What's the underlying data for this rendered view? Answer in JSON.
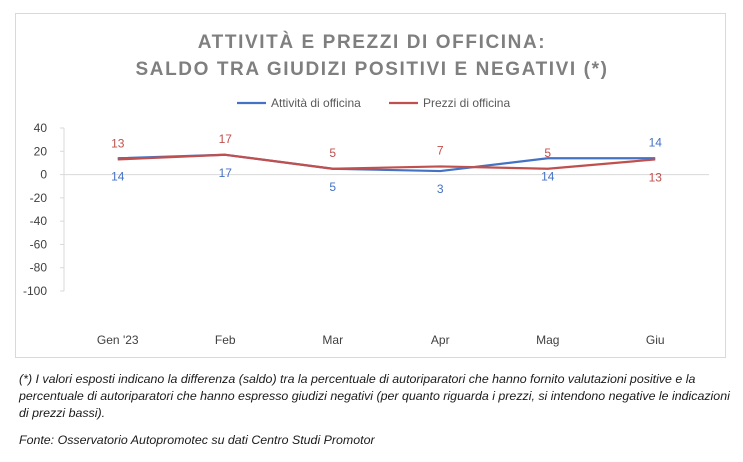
{
  "chart_data": {
    "type": "line",
    "title_lines": [
      "ATTIVITÀ E PREZZI DI OFFICINA:",
      "SALDO TRA GIUDIZI POSITIVI E NEGATIVI (*)"
    ],
    "categories": [
      "Gen '23",
      "Feb",
      "Mar",
      "Apr",
      "Mag",
      "Giu"
    ],
    "series": [
      {
        "name": "Attività di officina",
        "values": [
          14,
          17,
          5,
          3,
          14,
          14
        ],
        "labels": [
          "14",
          "17",
          "5",
          "3",
          "14",
          "14"
        ],
        "color": "#4472c4",
        "label_position": [
          "below",
          "below",
          "below",
          "below",
          "below",
          "above"
        ]
      },
      {
        "name": "Prezzi di officina",
        "values": [
          13,
          17,
          5,
          7,
          5,
          13
        ],
        "labels": [
          "13",
          "17",
          "5",
          "7",
          "5",
          "13"
        ],
        "color": "#c0504d",
        "label_position": [
          "above",
          "above",
          "above",
          "above",
          "above",
          "below"
        ]
      }
    ],
    "y_ticks": [
      "40",
      "20",
      "0",
      "-20",
      "-40",
      "-60",
      "-80",
      "-100"
    ],
    "ylim": [
      -100,
      40
    ],
    "grid": false,
    "legend_position": "top"
  },
  "footnote": "(*) I valori esposti indicano la differenza (saldo) tra la percentuale di autoriparatori che hanno fornito valutazioni positive e la percentuale di autoriparatori che hanno espresso giudizi negativi (per quanto riguarda i prezzi, si intendono negative le indicazioni di prezzi bassi).",
  "source": "Fonte: Osservatorio Autopromotec su dati Centro Studi Promotor"
}
